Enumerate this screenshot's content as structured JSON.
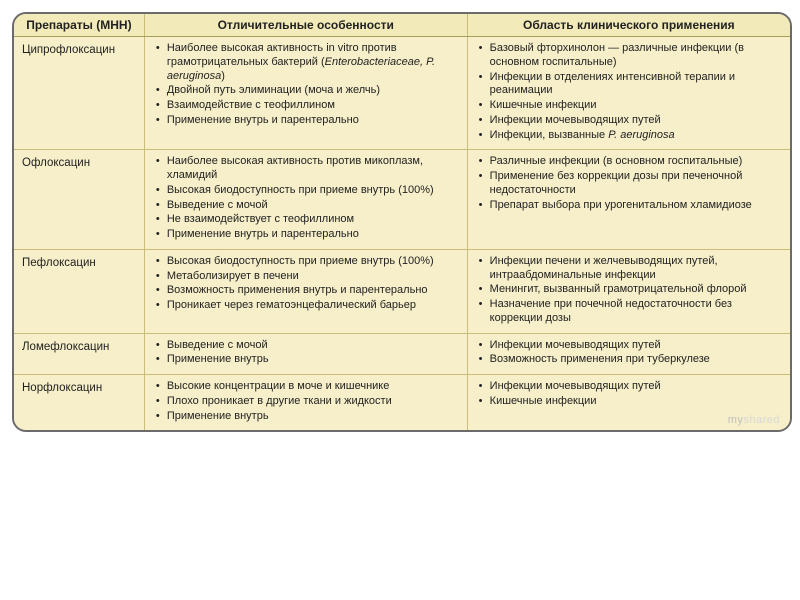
{
  "table": {
    "columns": [
      "Препараты (МНН)",
      "Отличительные особенности",
      "Область клинического применения"
    ],
    "col_widths": [
      "130px",
      "322px",
      "322px"
    ],
    "header_bg": "#f2eab8",
    "cell_bg": "#f6efc9",
    "border_color": "#c9bd77",
    "font_size_header": 12,
    "font_size_cell": 11,
    "rows": [
      {
        "drug": "Ципрофлоксацин",
        "features": [
          "Наиболее высокая активность in vitro против грамотрицательных бактерий (<i>Enterobacteriaceae, P. aeruginosa</i>)",
          "Двойной путь элиминации (моча и желчь)",
          "Взаимодействие с теофиллином",
          "Применение внутрь и парентерально"
        ],
        "uses": [
          "Базовый фторхинолон — различные инфекции (в основном госпитальные)",
          "Инфекции в отделениях интенсивной терапии и реанимации",
          "Кишечные инфекции",
          "Инфекции мочевыводящих путей",
          "Инфекции, вызванные <i>P. aeruginosa</i>"
        ]
      },
      {
        "drug": "Офлоксацин",
        "features": [
          "Наиболее высокая активность против микоплазм, хламидий",
          "Высокая биодоступность при приеме внутрь (100%)",
          "Выведение с мочой",
          "Не взаимодействует с теофиллином",
          "Применение внутрь и парентерально"
        ],
        "uses": [
          "Различные инфекции (в основном госпитальные)",
          "Применение без коррекции дозы при печеночной недостаточности",
          "Препарат выбора при урогенитальном хламидиозе"
        ]
      },
      {
        "drug": "Пефлоксацин",
        "features": [
          "Высокая биодоступность при приеме внутрь (100%)",
          "Метаболизирует в печени",
          "Возможность применения внутрь и парентерально",
          "Проникает через гематоэнцефалический барьер"
        ],
        "uses": [
          "Инфекции печени и желчевыводящих путей, интраабдоминальные инфекции",
          "Менингит, вызванный грамотрицательной флорой",
          "Назначение при почечной недостаточности без коррекции дозы"
        ]
      },
      {
        "drug": "Ломефлоксацин",
        "features": [
          "Выведение с мочой",
          "Применение внутрь"
        ],
        "uses": [
          "Инфекции мочевыводящих путей",
          "Возможность применения при туберкулезе"
        ]
      },
      {
        "drug": "Норфлоксацин",
        "features": [
          "Высокие концентрации в моче и кишечнике",
          "Плохо проникает в другие ткани и жидкости",
          "Применение внутрь"
        ],
        "uses": [
          "Инфекции мочевыводящих путей",
          "Кишечные инфекции"
        ]
      }
    ]
  },
  "watermark": "myshared"
}
